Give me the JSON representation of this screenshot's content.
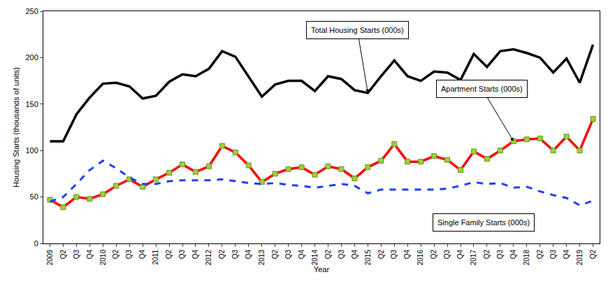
{
  "chart_data": {
    "type": "line",
    "x_label": "Year",
    "y_label": "Housing Starts (thousands of units)",
    "categories": [
      "2009",
      "Q2",
      "Q3",
      "Q4",
      "2010",
      "Q2",
      "Q3",
      "Q4",
      "2011",
      "Q2",
      "Q3",
      "Q4",
      "2012",
      "Q2",
      "Q3",
      "Q4",
      "2013",
      "Q2",
      "Q3",
      "Q4",
      "2014",
      "Q2",
      "Q3",
      "Q4",
      "2015",
      "Q2",
      "Q3",
      "Q4",
      "2016",
      "Q2",
      "Q3",
      "Q4",
      "2017",
      "Q2",
      "Q3",
      "Q4",
      "2018",
      "Q2",
      "Q3",
      "Q4",
      "2019",
      "Q2"
    ],
    "ylim": [
      0,
      250
    ],
    "yticks": [
      0,
      50,
      100,
      150,
      200,
      250
    ],
    "grid": false,
    "series": [
      {
        "name": "Total Housing Starts (000s)",
        "color": "#000000",
        "line_style": "solid",
        "values": [
          110,
          110,
          139,
          157,
          172,
          173,
          169,
          156,
          159,
          174,
          182,
          180,
          188,
          207,
          201,
          180,
          158,
          171,
          175,
          175,
          164,
          180,
          177,
          165,
          162,
          180,
          197,
          180,
          175,
          185,
          184,
          176,
          204,
          190,
          207,
          209,
          205,
          200,
          184,
          199,
          173,
          214
        ]
      },
      {
        "name": "Apartment Starts (000s)",
        "color": "#ff0000",
        "line_style": "solid",
        "marker": "square",
        "values": [
          47,
          39,
          50,
          48,
          53,
          62,
          69,
          61,
          69,
          76,
          85,
          77,
          83,
          105,
          98,
          84,
          66,
          75,
          80,
          82,
          74,
          83,
          80,
          70,
          82,
          89,
          107,
          88,
          88,
          94,
          90,
          79,
          99,
          91,
          100,
          110,
          112,
          113,
          100,
          115,
          100,
          134
        ]
      },
      {
        "name": "Single Family Starts (000s)",
        "color": "#1f3fff",
        "line_style": "dash",
        "values": [
          45,
          50,
          64,
          79,
          89,
          81,
          71,
          64,
          64,
          67,
          68,
          68,
          68,
          69,
          67,
          65,
          64,
          65,
          63,
          62,
          60,
          62,
          64,
          62,
          54,
          58,
          58,
          58,
          58,
          58,
          59,
          62,
          66,
          64,
          65,
          60,
          61,
          56,
          52,
          49,
          41,
          46
        ]
      }
    ]
  }
}
